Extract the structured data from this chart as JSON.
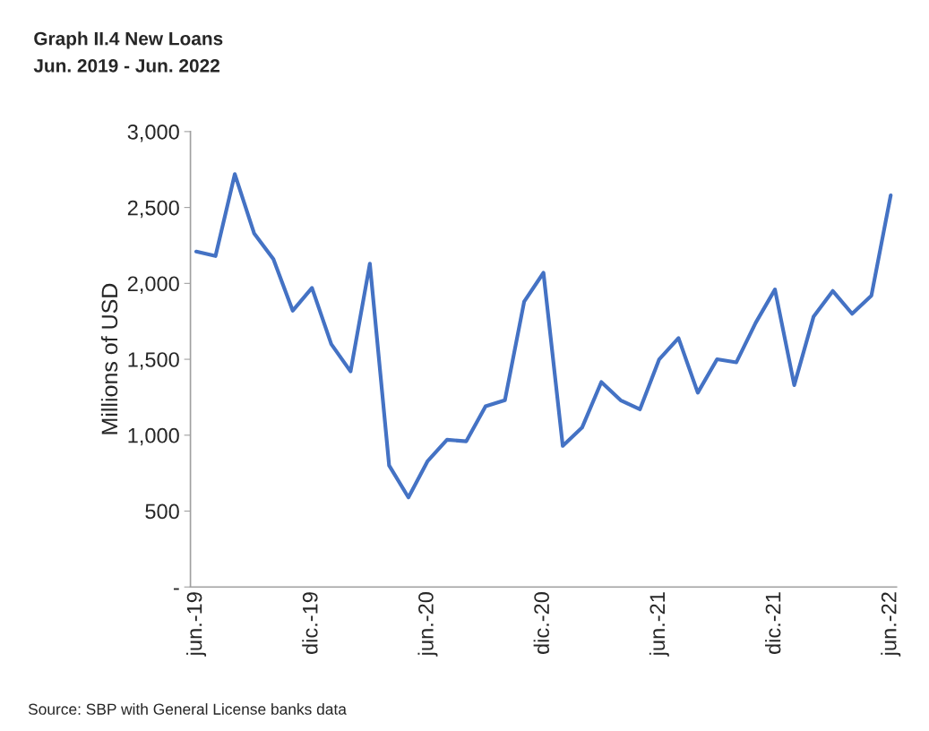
{
  "chart_data": {
    "type": "line",
    "title": "Graph II.4 New Loans",
    "subtitle": "Jun. 2019 - Jun. 2022",
    "ylabel": "Millions of USD",
    "categories": [
      "jun.-19",
      null,
      null,
      null,
      null,
      null,
      "dic.-19",
      null,
      null,
      null,
      null,
      null,
      "jun.-20",
      null,
      null,
      null,
      null,
      null,
      "dic.-20",
      null,
      null,
      null,
      null,
      null,
      "jun.-21",
      null,
      null,
      null,
      null,
      null,
      "dic.-21",
      null,
      null,
      null,
      null,
      null,
      "jun.-22"
    ],
    "series": [
      {
        "color": "#4472c4",
        "values": [
          2210,
          2180,
          2720,
          2330,
          2160,
          1820,
          1970,
          1600,
          1420,
          2130,
          800,
          590,
          830,
          970,
          960,
          1190,
          1230,
          1880,
          2070,
          930,
          1050,
          1350,
          1230,
          1170,
          1500,
          1640,
          1280,
          1500,
          1480,
          1740,
          1960,
          1330,
          1780,
          1950,
          1800,
          1920,
          2580
        ]
      }
    ],
    "ylim": [
      0,
      3000
    ],
    "yticks": [
      {
        "value": 0,
        "label": "-"
      },
      {
        "value": 500,
        "label": "500"
      },
      {
        "value": 1000,
        "label": "1,000"
      },
      {
        "value": 1500,
        "label": "1,500"
      },
      {
        "value": 2000,
        "label": "2,000"
      },
      {
        "value": 2500,
        "label": "2,500"
      },
      {
        "value": 3000,
        "label": "3,000"
      }
    ],
    "grid": false,
    "legend": false,
    "marker": "none",
    "line_style": "solid",
    "annotations": [
      "Source: SBP with General License banks data"
    ]
  }
}
